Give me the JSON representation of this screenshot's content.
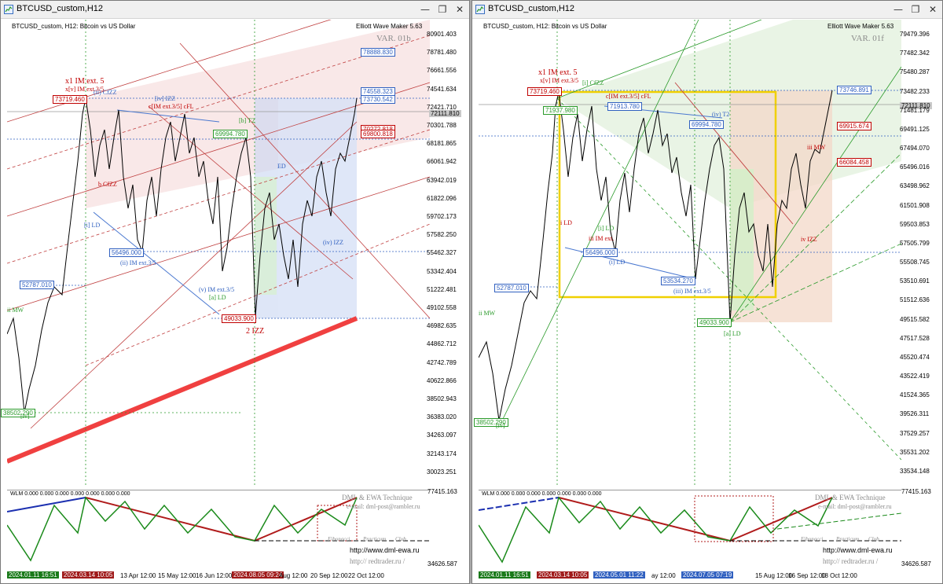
{
  "left": {
    "window_title": "BTCUSD_custom,H12",
    "chart_info": "BTCUSD_custom, H12:  Bitcoin vs US Dollar",
    "ewm_label": "Elliott Wave Maker 5.63",
    "var_label": "VAR. 01b",
    "y_labels": [
      "80901.403",
      "78781.480",
      "76661.556",
      "74541.634",
      "72421.710",
      "70301.788",
      "68181.865",
      "66061.942",
      "63942.019",
      "61822.096",
      "59702.173",
      "57582.250",
      "55462.327",
      "53342.404",
      "51222.481",
      "49102.558",
      "46982.635",
      "44862.712",
      "42742.789",
      "40622.866",
      "38502.943",
      "36383.020",
      "34263.097",
      "32143.174",
      "30023.251"
    ],
    "boxes": {
      "b1": "78888.830",
      "b2": "74558.323",
      "b3": "73730.542",
      "b4": "70272.818",
      "b5": "69800.818",
      "b6": "72111.810",
      "p1": "73719.460",
      "p2": "69994.780",
      "p3": "56496.000",
      "p4": "52787.010",
      "p5": "49033.900",
      "p6": "38502.290"
    },
    "wave_labels": {
      "w1": "x1 IM ext. 5",
      "w2": "x[v] IM ext.3/5",
      "w3": "(ii) CfZZ",
      "w4": "[iv] IZZ",
      "w5": "c[IM ext.3/5] cFL",
      "w6": "[b] T2",
      "w7": "(ii) IM ext.3/5",
      "w8": "(v) IM ext.3/5",
      "w9": "[a] LD",
      "w10": "2 IZZ",
      "w11": "ii MW",
      "w12": "(iv) IZZ",
      "w13": "[i] LD",
      "w14": "ED",
      "w15": "b CfZZ",
      "w16": "[iv]"
    },
    "x_labels": [
      "13 Apr 12:00",
      "15 May 12:00",
      "16 Jun 12:00",
      "Aug 12:00",
      "20 Sep 12:00",
      "22 Oct 12:00"
    ],
    "x_tags": [
      "2024.01.11 16:51",
      "2024.03.14 10:05",
      "2024.08.05 09:24"
    ],
    "ind_text": "WLM 0.000 0.000 0.000 0.000 0.000 0.000 0.000",
    "ind_labels": [
      "77415.163",
      "34626.587"
    ],
    "dml": "DML & EWA Technique",
    "email": "e-mail: dml-post@rambler.ru",
    "url1": "http://www.dml-ewa.ru",
    "url2": "http:// redtrader.ru /",
    "fib": [
      "Fibonacci",
      "Practicum",
      "Club"
    ]
  },
  "right": {
    "window_title": "BTCUSD_custom,H12",
    "chart_info": "BTCUSD_custom, H12:  Bitcoin vs US Dollar",
    "ewm_label": "Elliott Wave Maker 5.63",
    "var_label": "VAR. 01f",
    "y_labels": [
      "79479.396",
      "77482.342",
      "75480.287",
      "73482.233",
      "71481.179",
      "69491.125",
      "67494.070",
      "65496.016",
      "63498.962",
      "61501.908",
      "59503.853",
      "57505.799",
      "55508.745",
      "53510.691",
      "51512.636",
      "49515.582",
      "47517.528",
      "45520.474",
      "43522.419",
      "41524.365",
      "39526.311",
      "37529.257",
      "35531.202",
      "33534.148"
    ],
    "boxes": {
      "b1": "73746.891",
      "b2": "72111.810",
      "b3": "69915.674",
      "b4": "66084.458",
      "p1": "73719.460",
      "p2": "69994.780",
      "p3": "71913.780",
      "p4": "56496.000",
      "p5": "53534.270",
      "p6": "52787.010",
      "p7": "49033.900",
      "p8": "38502.290",
      "p9": "71937.980"
    },
    "wave_labels": {
      "w1": "x1 IM ext. 5",
      "w2": "x[v] IM ext.3/5",
      "w3": "[i] CfZZ",
      "w4": "c[IM ext.3/5] cFL",
      "w5": "(iv) T2",
      "w6": "(iii) IM ext.3/5",
      "w7": "[a] LD",
      "w8": "ii MW",
      "w9": "iii MW",
      "w10": "iv IZZ",
      "w11": "iii IM ext.",
      "w12": "[i] LD",
      "w13": "(i) LD",
      "w14": "[iv]",
      "w15": "i LD"
    },
    "x_labels": [
      "ay 12:00",
      "15 Aug 12:00",
      "16 Sep 12:00",
      "18 Oct 12:00"
    ],
    "x_tags": [
      "2024.01.11 16:51",
      "2024.03.14 10:05",
      "2024.05.01 11:22",
      "2024.07.05 07:19"
    ],
    "ind_text": "WLM 0.000 0.000 0.000 0.000 0.000 0.000 0.000",
    "ind_labels": [
      "77415.163",
      "34626.587"
    ],
    "dml": "DML & EWA Technique",
    "email": "e-mail: dml-post@rambler.ru",
    "url1": "http://www.dml-ewa.ru",
    "url2": "http:// redtrader.ru /",
    "fib": [
      "Fibonacci",
      "Practicum",
      "Club"
    ]
  },
  "colors": {
    "up": "#00a000",
    "down": "#c00000",
    "accent": "#3060c0",
    "candle": "#000000"
  }
}
